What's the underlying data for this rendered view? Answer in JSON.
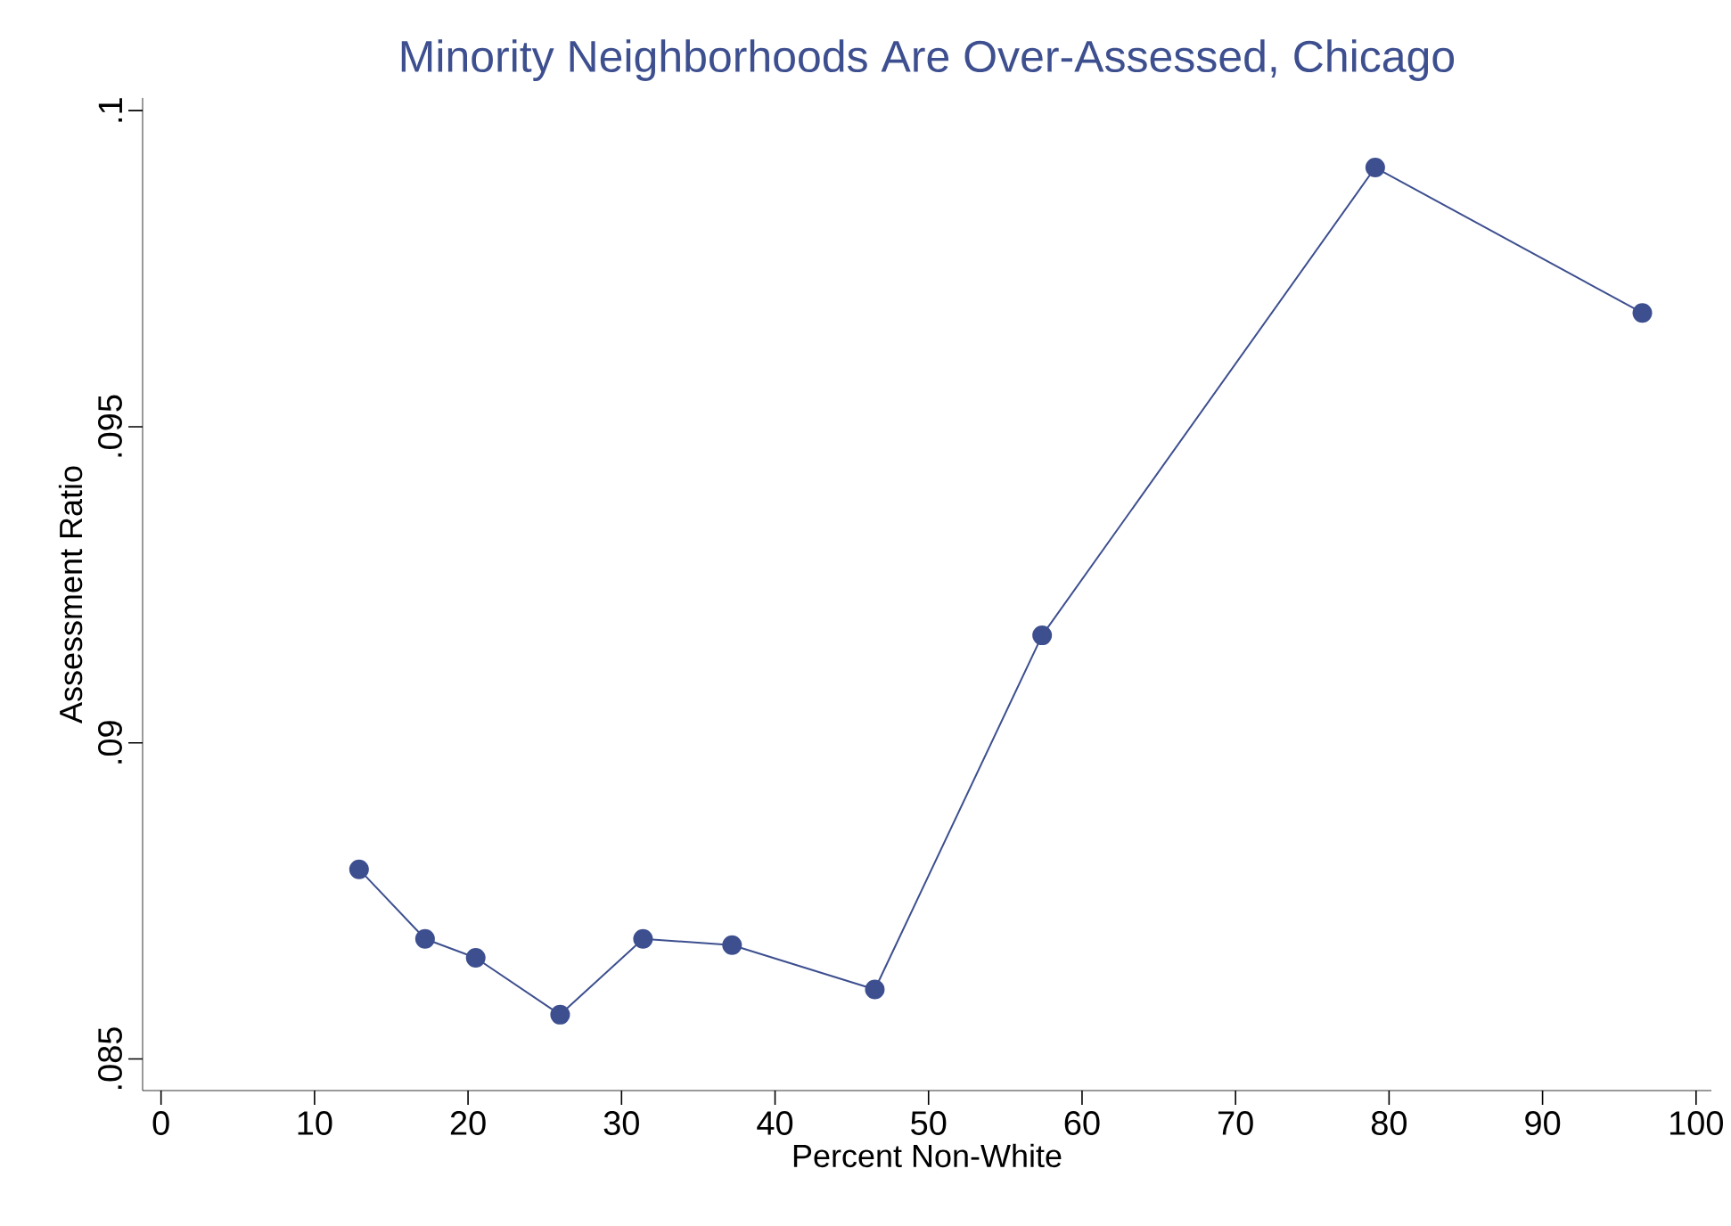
{
  "chart_data": {
    "type": "line",
    "title": "Minority Neighborhoods Are Over-Assessed, Chicago",
    "xlabel": "Percent Non-White",
    "ylabel": "Assessment Ratio",
    "x": [
      12.9,
      17.2,
      20.5,
      26.0,
      31.4,
      37.2,
      46.5,
      57.4,
      79.1,
      96.5
    ],
    "series": [
      {
        "color": "#3d4f8f",
        "values": [
          0.088,
          0.0869,
          0.0866,
          0.0857,
          0.0869,
          0.0868,
          0.0861,
          0.0917,
          0.0991,
          0.0968
        ]
      }
    ],
    "xlim": [
      -1.2,
      101
    ],
    "ylim": [
      0.0845,
      0.1002
    ],
    "xticks": [
      0,
      10,
      20,
      30,
      40,
      50,
      60,
      70,
      80,
      90,
      100
    ],
    "yticks": [
      {
        "value": 0.085,
        "label": ".085"
      },
      {
        "value": 0.09,
        "label": ".09"
      },
      {
        "value": 0.095,
        "label": ".095"
      },
      {
        "value": 0.1,
        "label": ".1"
      }
    ],
    "grid": false,
    "marker": "circle",
    "line_style": "solid"
  }
}
